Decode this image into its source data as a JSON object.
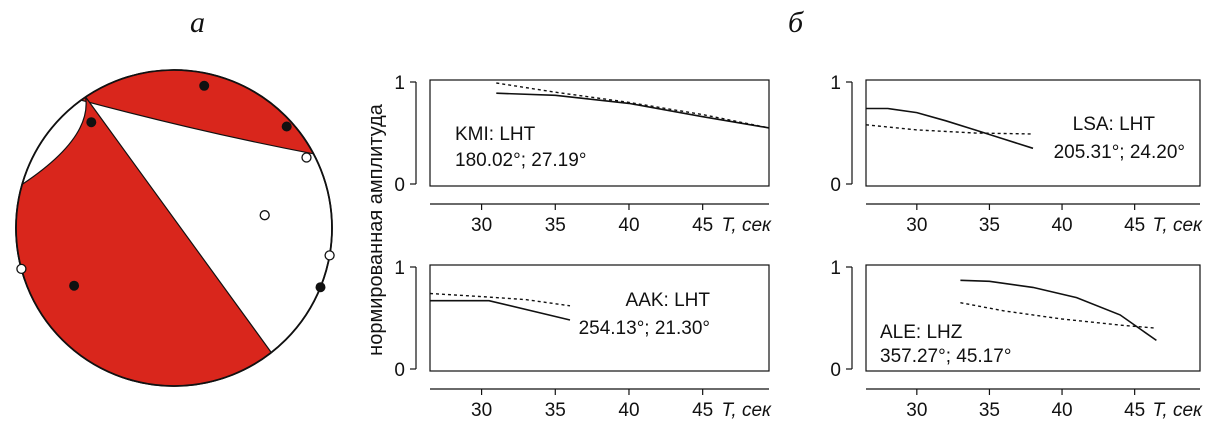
{
  "labels": {
    "a": "а",
    "b": "б"
  },
  "colors": {
    "fill": "#d9261c",
    "stroke": "#111111",
    "background": "#ffffff"
  },
  "beachball": {
    "polarities": {
      "compression": [
        {
          "az": 12
        },
        {
          "az": 48
        },
        {
          "az": 322
        },
        {
          "az": 112
        },
        {
          "az": 240
        }
      ],
      "dilatation": [
        {
          "az": 62
        },
        {
          "az": 82
        },
        {
          "az": 100
        },
        {
          "az": 255
        }
      ]
    }
  },
  "ylabel": "нормированная амплитуда",
  "xlabel_suffix": "T, сек",
  "chart_data": [
    {
      "type": "line",
      "panel": "top-left",
      "station": "KMI: LHT",
      "angles": "180.02°; 27.19°",
      "xlim": [
        26.5,
        49.5
      ],
      "ylim": [
        0,
        1
      ],
      "xticks": [
        30,
        35,
        40,
        45
      ],
      "yticks": [
        0,
        1
      ],
      "xlabel": "T, сек",
      "ylabel": "нормированная амплитуда",
      "series": [
        {
          "style": "solid",
          "x": [
            31,
            35,
            40,
            45,
            49.5
          ],
          "y": [
            0.89,
            0.87,
            0.79,
            0.66,
            0.55
          ]
        },
        {
          "style": "dashed",
          "x": [
            31,
            35,
            40,
            45,
            49.5
          ],
          "y": [
            0.99,
            0.9,
            0.8,
            0.68,
            0.55
          ]
        }
      ]
    },
    {
      "type": "line",
      "panel": "top-right",
      "station": "LSA: LHT",
      "angles": "205.31°; 24.20°",
      "xlim": [
        26.5,
        49.5
      ],
      "ylim": [
        0,
        1
      ],
      "xticks": [
        30,
        35,
        40,
        45
      ],
      "yticks": [
        0,
        1
      ],
      "xlabel": "T, сек",
      "ylabel": "",
      "series": [
        {
          "style": "solid",
          "x": [
            26.5,
            28,
            30,
            32,
            34,
            36,
            38
          ],
          "y": [
            0.74,
            0.74,
            0.7,
            0.62,
            0.53,
            0.44,
            0.35
          ]
        },
        {
          "style": "dashed",
          "x": [
            26.5,
            30,
            34,
            38
          ],
          "y": [
            0.58,
            0.53,
            0.5,
            0.49
          ]
        }
      ]
    },
    {
      "type": "line",
      "panel": "bottom-left",
      "station": "AAK: LHT",
      "angles": "254.13°; 21.30°",
      "xlim": [
        26.5,
        49.5
      ],
      "ylim": [
        0,
        1
      ],
      "xticks": [
        30,
        35,
        40,
        45
      ],
      "yticks": [
        0,
        1
      ],
      "xlabel": "T, сек",
      "ylabel": "",
      "series": [
        {
          "style": "solid",
          "x": [
            26.5,
            30.5,
            36
          ],
          "y": [
            0.67,
            0.67,
            0.48
          ]
        },
        {
          "style": "dashed",
          "x": [
            26.5,
            30,
            33,
            36
          ],
          "y": [
            0.74,
            0.71,
            0.68,
            0.62
          ]
        }
      ]
    },
    {
      "type": "line",
      "panel": "bottom-right",
      "station": "ALE: LHZ",
      "angles": "357.27°; 45.17°",
      "xlim": [
        26.5,
        49.5
      ],
      "ylim": [
        0,
        1
      ],
      "xticks": [
        30,
        35,
        40,
        45
      ],
      "yticks": [
        0,
        1
      ],
      "xlabel": "T, сек",
      "ylabel": "",
      "series": [
        {
          "style": "solid",
          "x": [
            33,
            35,
            38,
            41,
            44,
            46.5
          ],
          "y": [
            0.87,
            0.86,
            0.8,
            0.7,
            0.53,
            0.28
          ]
        },
        {
          "style": "dashed",
          "x": [
            33,
            36,
            40,
            44,
            46.5
          ],
          "y": [
            0.65,
            0.57,
            0.49,
            0.43,
            0.4
          ]
        }
      ]
    }
  ]
}
